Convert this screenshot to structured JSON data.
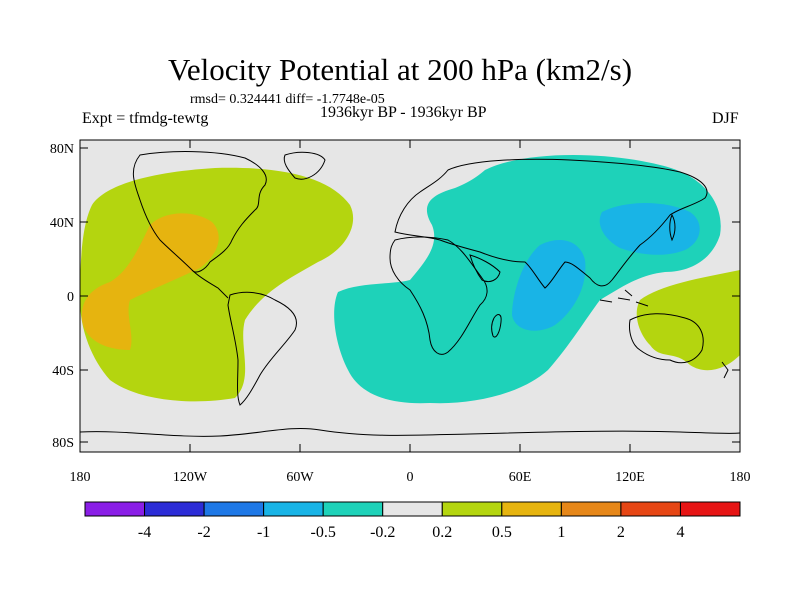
{
  "figure": {
    "title": "Velocity Potential at 200 hPa (km2/s)",
    "stats": "rmsd= 0.324441 diff= -1.7748e-05",
    "experiment": "Expt = tfmdg-tewtg",
    "period": "1936kyr BP - 1936kyr BP",
    "season": "DJF"
  },
  "axes": {
    "lat_ticks": [
      "80N",
      "40N",
      "0",
      "40S",
      "80S"
    ],
    "lon_ticks": [
      "180",
      "120W",
      "60W",
      "0",
      "60E",
      "120E",
      "180"
    ]
  },
  "colorbar": {
    "labels": [
      "-4",
      "-2",
      "-1",
      "-0.5",
      "-0.2",
      "0.2",
      "0.5",
      "1",
      "2",
      "4"
    ],
    "colors": [
      "#8a1ee6",
      "#2c2cd6",
      "#1e78e6",
      "#19b4e6",
      "#1ed2b9",
      "#e6e6e6",
      "#b4d50f",
      "#e6b40f",
      "#e68719",
      "#e64614",
      "#e61414"
    ]
  },
  "chart_data": {
    "type": "filled-contour-map",
    "title": "Velocity Potential at 200 hPa (km2/s)",
    "variable": "velocity potential difference",
    "units": "km2/s",
    "levels": [
      -4,
      -2,
      -1,
      -0.5,
      -0.2,
      0.2,
      0.5,
      1,
      2,
      4
    ],
    "lon_range": [
      -180,
      180
    ],
    "lat_range": [
      -90,
      90
    ],
    "regions": [
      {
        "name": "Pacific/Americas positive",
        "value_range": [
          0.2,
          0.5
        ]
      },
      {
        "name": "Eastern Pacific maximum",
        "value_range": [
          0.5,
          1
        ]
      },
      {
        "name": "Atlantic/Africa/Eurasia negative",
        "value_range": [
          -0.5,
          -0.2
        ]
      },
      {
        "name": "Indian Ocean minimum",
        "value_range": [
          -1,
          -0.5
        ]
      },
      {
        "name": "East Asia/NW Pacific minimum",
        "value_range": [
          -1,
          -0.5
        ]
      },
      {
        "name": "Australia/SW Pacific positive",
        "value_range": [
          0.2,
          0.5
        ]
      }
    ]
  }
}
